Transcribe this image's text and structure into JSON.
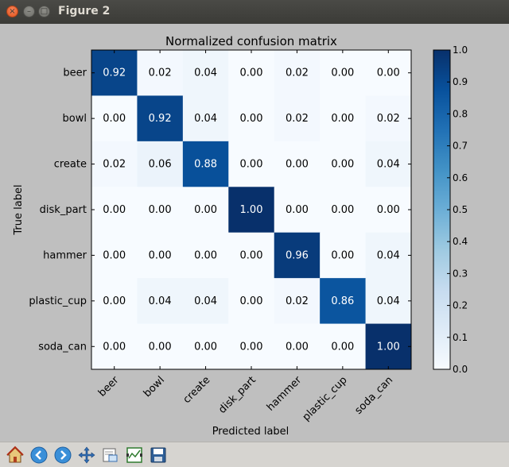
{
  "window": {
    "title": "Figure 2",
    "close_glyph": "×",
    "min_glyph": "–",
    "max_glyph": "□"
  },
  "toolbar": {
    "buttons": [
      "home-icon",
      "back-arrow-icon",
      "forward-arrow-icon",
      "pan-icon",
      "zoom-icon",
      "subplots-icon",
      "save-icon"
    ]
  },
  "colors": {
    "cmap_low": "#f7fbff",
    "cmap_high": "#08306b",
    "text_dark": "#000000",
    "text_light": "#ffffff"
  },
  "chart_data": {
    "type": "heatmap",
    "title": "Normalized confusion matrix",
    "xlabel": "Predicted label",
    "ylabel": "True label",
    "x_categories": [
      "beer",
      "bowl",
      "create",
      "disk_part",
      "hammer",
      "plastic_cup",
      "soda_can"
    ],
    "y_categories": [
      "beer",
      "bowl",
      "create",
      "disk_part",
      "hammer",
      "plastic_cup",
      "soda_can"
    ],
    "values": [
      [
        0.92,
        0.02,
        0.04,
        0.0,
        0.02,
        0.0,
        0.0
      ],
      [
        0.0,
        0.92,
        0.04,
        0.0,
        0.02,
        0.0,
        0.02
      ],
      [
        0.02,
        0.06,
        0.88,
        0.0,
        0.0,
        0.0,
        0.04
      ],
      [
        0.0,
        0.0,
        0.0,
        1.0,
        0.0,
        0.0,
        0.0
      ],
      [
        0.0,
        0.0,
        0.0,
        0.0,
        0.96,
        0.0,
        0.04
      ],
      [
        0.0,
        0.04,
        0.04,
        0.0,
        0.02,
        0.86,
        0.04
      ],
      [
        0.0,
        0.0,
        0.0,
        0.0,
        0.0,
        0.0,
        1.0
      ]
    ],
    "value_labels": [
      [
        "0.92",
        "0.02",
        "0.04",
        "0.00",
        "0.02",
        "0.00",
        "0.00"
      ],
      [
        "0.00",
        "0.92",
        "0.04",
        "0.00",
        "0.02",
        "0.00",
        "0.02"
      ],
      [
        "0.02",
        "0.06",
        "0.88",
        "0.00",
        "0.00",
        "0.00",
        "0.04"
      ],
      [
        "0.00",
        "0.00",
        "0.00",
        "1.00",
        "0.00",
        "0.00",
        "0.00"
      ],
      [
        "0.00",
        "0.00",
        "0.00",
        "0.00",
        "0.96",
        "0.00",
        "0.04"
      ],
      [
        "0.00",
        "0.04",
        "0.04",
        "0.00",
        "0.02",
        "0.86",
        "0.04"
      ],
      [
        "0.00",
        "0.00",
        "0.00",
        "0.00",
        "0.00",
        "0.00",
        "1.00"
      ]
    ],
    "colorbar": {
      "range": [
        0.0,
        1.0
      ],
      "ticks": [
        "0.0",
        "0.1",
        "0.2",
        "0.3",
        "0.4",
        "0.5",
        "0.6",
        "0.7",
        "0.8",
        "0.9",
        "1.0"
      ]
    }
  }
}
